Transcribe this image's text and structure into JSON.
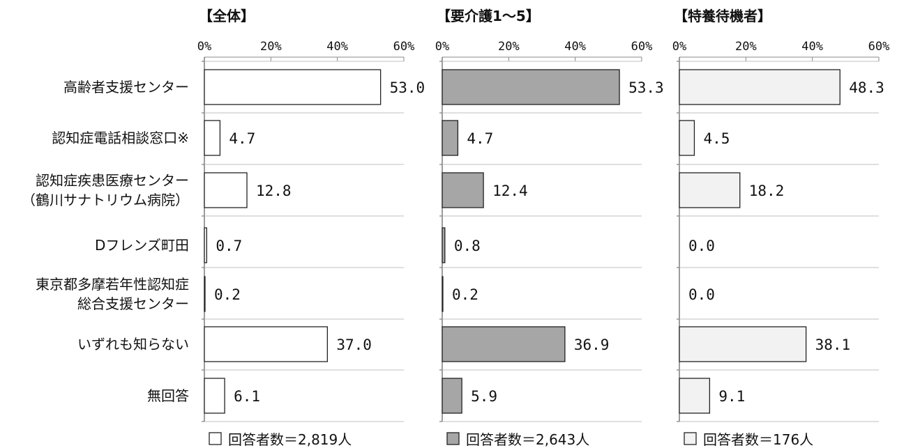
{
  "chart_data": {
    "type": "bar",
    "orientation": "horizontal",
    "categories": [
      [
        "高齢者支援センター"
      ],
      [
        "認知症電話相談窓口※"
      ],
      [
        "認知症疾患医療センター",
        "（鶴川サナトリウム病院）"
      ],
      [
        "Dフレンズ町田"
      ],
      [
        "東京都多摩若年性認知症",
        "総合支援センター"
      ],
      [
        "いずれも知らない"
      ],
      [
        "無回答"
      ]
    ],
    "xlim": [
      0,
      60
    ],
    "xticks": [
      "0%",
      "20%",
      "40%",
      "60%"
    ],
    "grid": false,
    "panels": [
      {
        "title": "【全体】",
        "values": [
          53.0,
          4.7,
          12.8,
          0.7,
          0.2,
          37.0,
          6.1
        ],
        "labels": [
          "53.0",
          "4.7",
          "12.8",
          "0.7",
          "0.2",
          "37.0",
          "6.1"
        ],
        "fill": "#ffffff",
        "legend": "回答者数＝2,819人"
      },
      {
        "title": "【要介護1～5】",
        "values": [
          53.3,
          4.7,
          12.4,
          0.8,
          0.2,
          36.9,
          5.9
        ],
        "labels": [
          "53.3",
          "4.7",
          "12.4",
          "0.8",
          "0.2",
          "36.9",
          "5.9"
        ],
        "fill": "#a6a6a6",
        "legend": "回答者数＝2,643人"
      },
      {
        "title": "【特養待機者】",
        "values": [
          48.3,
          4.5,
          18.2,
          0.0,
          0.0,
          38.1,
          9.1
        ],
        "labels": [
          "48.3",
          "4.5",
          "18.2",
          "0.0",
          "0.0",
          "38.1",
          "9.1"
        ],
        "fill": "#f2f2f2",
        "legend": "回答者数＝176人"
      }
    ]
  }
}
